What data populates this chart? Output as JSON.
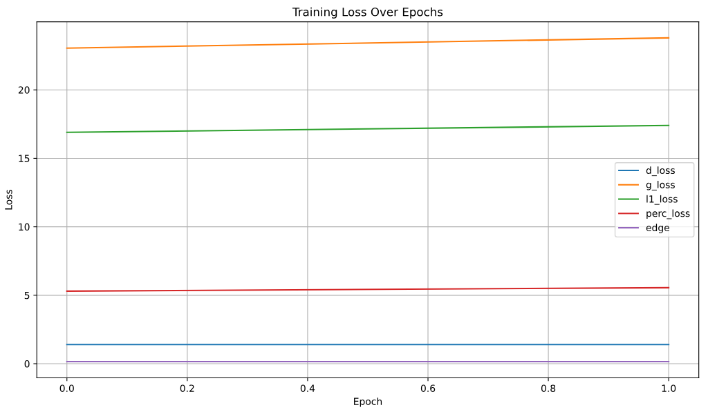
{
  "chart_data": {
    "type": "line",
    "title": "Training Loss Over Epochs",
    "xlabel": "Epoch",
    "ylabel": "Loss",
    "x": [
      0.0,
      1.0
    ],
    "series": [
      {
        "name": "d_loss",
        "color": "#1f77b4",
        "values": [
          1.4,
          1.4
        ]
      },
      {
        "name": "g_loss",
        "color": "#ff7f0e",
        "values": [
          23.05,
          23.8
        ]
      },
      {
        "name": "l1_loss",
        "color": "#2ca02c",
        "values": [
          16.9,
          17.4
        ]
      },
      {
        "name": "perc_loss",
        "color": "#d62728",
        "values": [
          5.3,
          5.55
        ]
      },
      {
        "name": "edge",
        "color": "#9467bd",
        "values": [
          0.15,
          0.15
        ]
      }
    ],
    "xlim": [
      -0.05,
      1.05
    ],
    "ylim": [
      -1.03,
      24.97
    ],
    "xticks": [
      {
        "value": 0,
        "label": "0.0"
      },
      {
        "value": 0.2,
        "label": "0.2"
      },
      {
        "value": 0.4,
        "label": "0.4"
      },
      {
        "value": 0.6,
        "label": "0.6"
      },
      {
        "value": 0.8,
        "label": "0.8"
      },
      {
        "value": 1,
        "label": "1.0"
      }
    ],
    "yticks": [
      0,
      5,
      10,
      15,
      20
    ],
    "grid": true,
    "legend": "right",
    "marker": "none",
    "line_style": "solid"
  }
}
